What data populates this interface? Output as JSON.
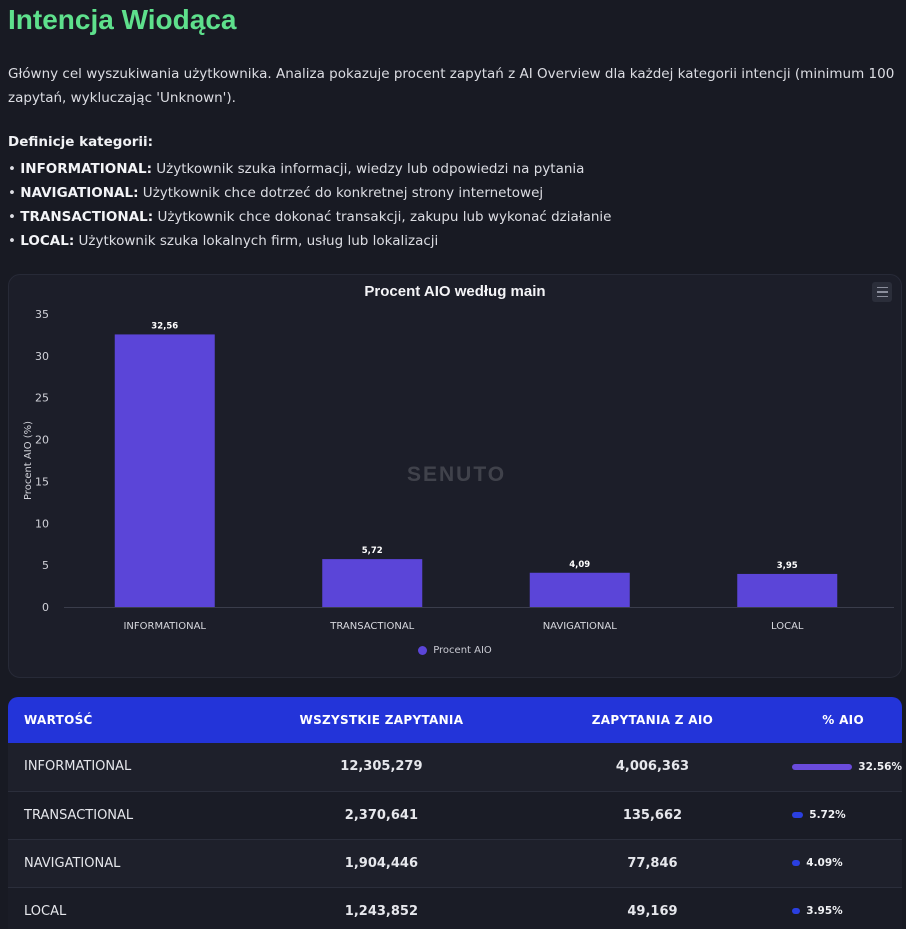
{
  "page": {
    "title": "Intencja Wiodąca",
    "intro": "Główny cel wyszukiwania użytkownika. Analiza pokazuje procent zapytań z AI Overview dla każdej kategorii intencji (minimum 100 zapytań, wykluczając 'Unknown').",
    "definitions_heading": "Definicje kategorii:",
    "definitions": [
      {
        "term": "INFORMATIONAL:",
        "text": " Użytkownik szuka informacji, wiedzy lub odpowiedzi na pytania"
      },
      {
        "term": "NAVIGATIONAL:",
        "text": " Użytkownik chce dotrzeć do konkretnej strony internetowej"
      },
      {
        "term": "TRANSACTIONAL:",
        "text": " Użytkownik chce dokonać transakcji, zakupu lub wykonać działanie"
      },
      {
        "term": "LOCAL:",
        "text": " Użytkownik szuka lokalnych firm, usług lub lokalizacji"
      }
    ]
  },
  "chart_data": {
    "type": "bar",
    "title": "Procent AIO według main",
    "categories": [
      "INFORMATIONAL",
      "TRANSACTIONAL",
      "NAVIGATIONAL",
      "LOCAL"
    ],
    "series": [
      {
        "name": "Procent AIO",
        "values": [
          32.56,
          5.72,
          4.09,
          3.95
        ]
      }
    ],
    "data_labels": [
      "32,56",
      "5,72",
      "4,09",
      "3,95"
    ],
    "ylabel": "Procent AIO (%)",
    "ylim": [
      0,
      35
    ],
    "yticks": [
      0,
      5,
      10,
      15,
      20,
      25,
      30,
      35
    ],
    "bar_color": "#5b45d8",
    "legend_position": "bottom",
    "watermark": "SENUTO"
  },
  "table": {
    "headers": [
      "WARTOŚĆ",
      "WSZYSTKIE ZAPYTANIA",
      "ZAPYTANIA Z AIO",
      "% AIO"
    ],
    "rows": [
      {
        "value": "INFORMATIONAL",
        "all": "12,305,279",
        "aio": "4,006,363",
        "pct": "32.56%",
        "pct_num": 32.56
      },
      {
        "value": "TRANSACTIONAL",
        "all": "2,370,641",
        "aio": "135,662",
        "pct": "5.72%",
        "pct_num": 5.72
      },
      {
        "value": "NAVIGATIONAL",
        "all": "1,904,446",
        "aio": "77,846",
        "pct": "4.09%",
        "pct_num": 4.09
      },
      {
        "value": "LOCAL",
        "all": "1,243,852",
        "aio": "49,169",
        "pct": "3.95%",
        "pct_num": 3.95
      }
    ]
  },
  "colors": {
    "title_green": "#5ee08c",
    "header_blue": "#2334d9",
    "bar_purple": "#5b45d8",
    "background": "#181a23"
  }
}
